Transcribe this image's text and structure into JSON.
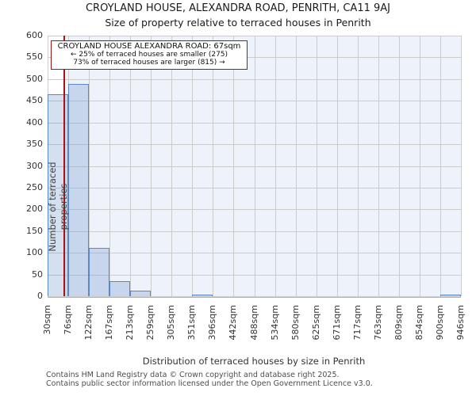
{
  "title": "CROYLAND HOUSE, ALEXANDRA ROAD, PENRITH, CA11 9AJ",
  "subtitle": "Size of property relative to terraced houses in Penrith",
  "annotation": {
    "line1": "CROYLAND HOUSE ALEXANDRA ROAD: 67sqm",
    "line2": "← 25% of terraced houses are smaller (275)",
    "line3": "73% of terraced houses are larger (815) →"
  },
  "chart_data": {
    "type": "bar",
    "title": "CROYLAND HOUSE, ALEXANDRA ROAD, PENRITH, CA11 9AJ",
    "subtitle": "Size of property relative to terraced houses in Penrith",
    "xlabel": "Distribution of terraced houses by size in Penrith",
    "ylabel": "Number of terraced properties",
    "categories": [
      "30sqm",
      "76sqm",
      "122sqm",
      "167sqm",
      "213sqm",
      "259sqm",
      "305sqm",
      "351sqm",
      "396sqm",
      "442sqm",
      "488sqm",
      "534sqm",
      "580sqm",
      "625sqm",
      "671sqm",
      "717sqm",
      "763sqm",
      "809sqm",
      "854sqm",
      "900sqm",
      "946sqm"
    ],
    "values": [
      465,
      489,
      111,
      34,
      12,
      0,
      0,
      3,
      0,
      0,
      0,
      0,
      0,
      0,
      0,
      0,
      0,
      0,
      0,
      3
    ],
    "x_range_sqm": [
      30,
      946
    ],
    "ylim": [
      0,
      600
    ],
    "yticks": [
      0,
      50,
      100,
      150,
      200,
      250,
      300,
      350,
      400,
      450,
      500,
      550,
      600
    ],
    "grid": true,
    "legend": "none",
    "marker": {
      "value_sqm": 67,
      "label": "67sqm"
    },
    "colors": {
      "bar_fill": "#d6e0f0",
      "bar_edge": "#5b87c5",
      "marker_line": "#aa1111",
      "annotation_border": "#aa1111",
      "highlight_region": "#eef3fb",
      "gridline": "#cccccc"
    }
  },
  "footer": {
    "line1": "Contains HM Land Registry data © Crown copyright and database right 2025.",
    "line2": "Contains public sector information licensed under the Open Government Licence v3.0."
  }
}
